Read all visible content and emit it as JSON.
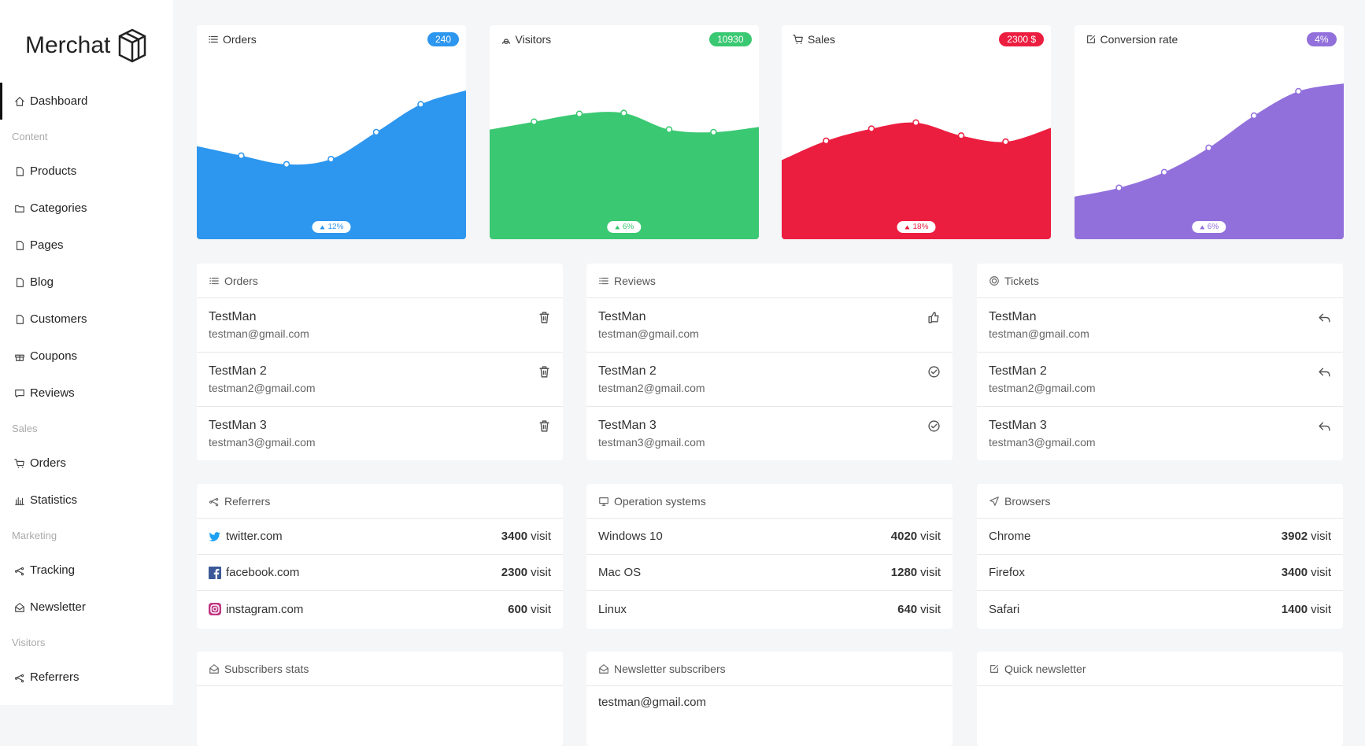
{
  "sidebar": {
    "brand": "Merchat",
    "nav": [
      {
        "label": "Dashboard",
        "active": true
      },
      {
        "section": "Content"
      },
      {
        "label": "Products"
      },
      {
        "label": "Categories"
      },
      {
        "label": "Pages"
      },
      {
        "label": "Blog"
      },
      {
        "label": "Customers"
      },
      {
        "label": "Coupons"
      },
      {
        "label": "Reviews"
      },
      {
        "section": "Sales"
      },
      {
        "label": "Orders"
      },
      {
        "label": "Statistics"
      },
      {
        "section": "Marketing"
      },
      {
        "label": "Tracking"
      },
      {
        "label": "Newsletter"
      },
      {
        "section": "Visitors"
      },
      {
        "label": "Referrers"
      }
    ]
  },
  "stats": [
    {
      "title": "Orders",
      "badge": "240",
      "change": "12%",
      "color": "#2d96ee"
    },
    {
      "title": "Visitors",
      "badge": "10930",
      "change": "6%",
      "color": "#3ac872"
    },
    {
      "title": "Sales",
      "badge": "2300 $",
      "change": "18%",
      "color": "#ec1e40"
    },
    {
      "title": "Conversion rate",
      "badge": "4%",
      "change": "6%",
      "color": "#9270dc"
    }
  ],
  "lists": [
    {
      "title": "Orders",
      "rows": [
        {
          "name": "TestMan",
          "email": "testman@gmail.com"
        },
        {
          "name": "TestMan 2",
          "email": "testman2@gmail.com"
        },
        {
          "name": "TestMan 3",
          "email": "testman3@gmail.com"
        }
      ]
    },
    {
      "title": "Reviews",
      "rows": [
        {
          "name": "TestMan",
          "email": "testman@gmail.com"
        },
        {
          "name": "TestMan 2",
          "email": "testman2@gmail.com"
        },
        {
          "name": "TestMan 3",
          "email": "testman3@gmail.com"
        }
      ]
    },
    {
      "title": "Tickets",
      "rows": [
        {
          "name": "TestMan",
          "email": "testman@gmail.com"
        },
        {
          "name": "TestMan 2",
          "email": "testman2@gmail.com"
        },
        {
          "name": "TestMan 3",
          "email": "testman3@gmail.com"
        }
      ]
    }
  ],
  "traffic": [
    {
      "title": "Referrers",
      "rows": [
        {
          "label": "twitter.com",
          "count": "3400",
          "unit": "visit"
        },
        {
          "label": "facebook.com",
          "count": "2300",
          "unit": "visit"
        },
        {
          "label": "instagram.com",
          "count": "600",
          "unit": "visit"
        }
      ]
    },
    {
      "title": "Operation systems",
      "rows": [
        {
          "label": "Windows 10",
          "count": "4020",
          "unit": "visit"
        },
        {
          "label": "Mac OS",
          "count": "1280",
          "unit": "visit"
        },
        {
          "label": "Linux",
          "count": "640",
          "unit": "visit"
        }
      ]
    },
    {
      "title": "Browsers",
      "rows": [
        {
          "label": "Chrome",
          "count": "3902",
          "unit": "visit"
        },
        {
          "label": "Firefox",
          "count": "3400",
          "unit": "visit"
        },
        {
          "label": "Safari",
          "count": "1400",
          "unit": "visit"
        }
      ]
    }
  ],
  "bottom": [
    {
      "title": "Subscribers stats"
    },
    {
      "title": "Newsletter subscribers",
      "rows": [
        "testman@gmail.com"
      ]
    },
    {
      "title": "Quick newsletter"
    }
  ]
}
